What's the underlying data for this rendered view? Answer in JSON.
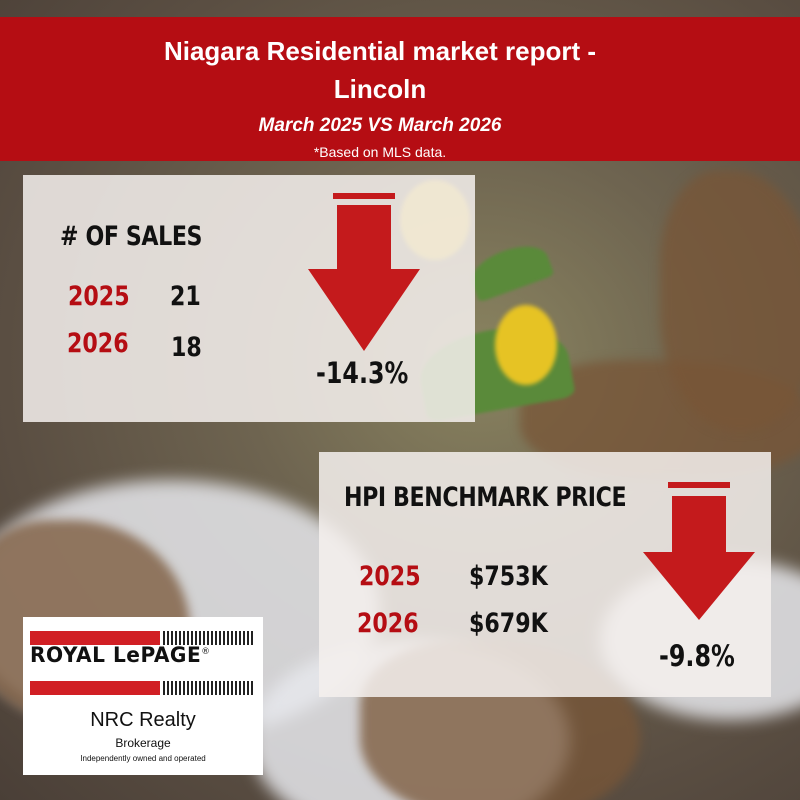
{
  "header": {
    "title_line1": "Niagara Residential market report -",
    "title_line2": "Lincoln",
    "subtitle": "March 2025 VS March 2026",
    "note": "*Based on MLS data."
  },
  "sales": {
    "title": "# OF SALES",
    "rows": [
      {
        "year": "2025",
        "value": "21"
      },
      {
        "year": "2026",
        "value": "18"
      }
    ],
    "change": "-14.3%"
  },
  "hpi": {
    "title": "HPI BENCHMARK PRICE",
    "rows": [
      {
        "year": "2025",
        "value": "$753K"
      },
      {
        "year": "2026",
        "value": "$679K"
      }
    ],
    "change": "-9.8%"
  },
  "logo": {
    "brand": "ROYAL LePAGE",
    "registered": "®",
    "name": "NRC Realty",
    "brokerage": "Brokerage",
    "tagline": "Independently owned and operated"
  },
  "colors": {
    "accent_red": "#b50d13",
    "arrow_red": "#c41a1c",
    "panel_bg": "#f5f0ee"
  },
  "icons": {
    "down_arrow": "arrow-down-icon"
  }
}
